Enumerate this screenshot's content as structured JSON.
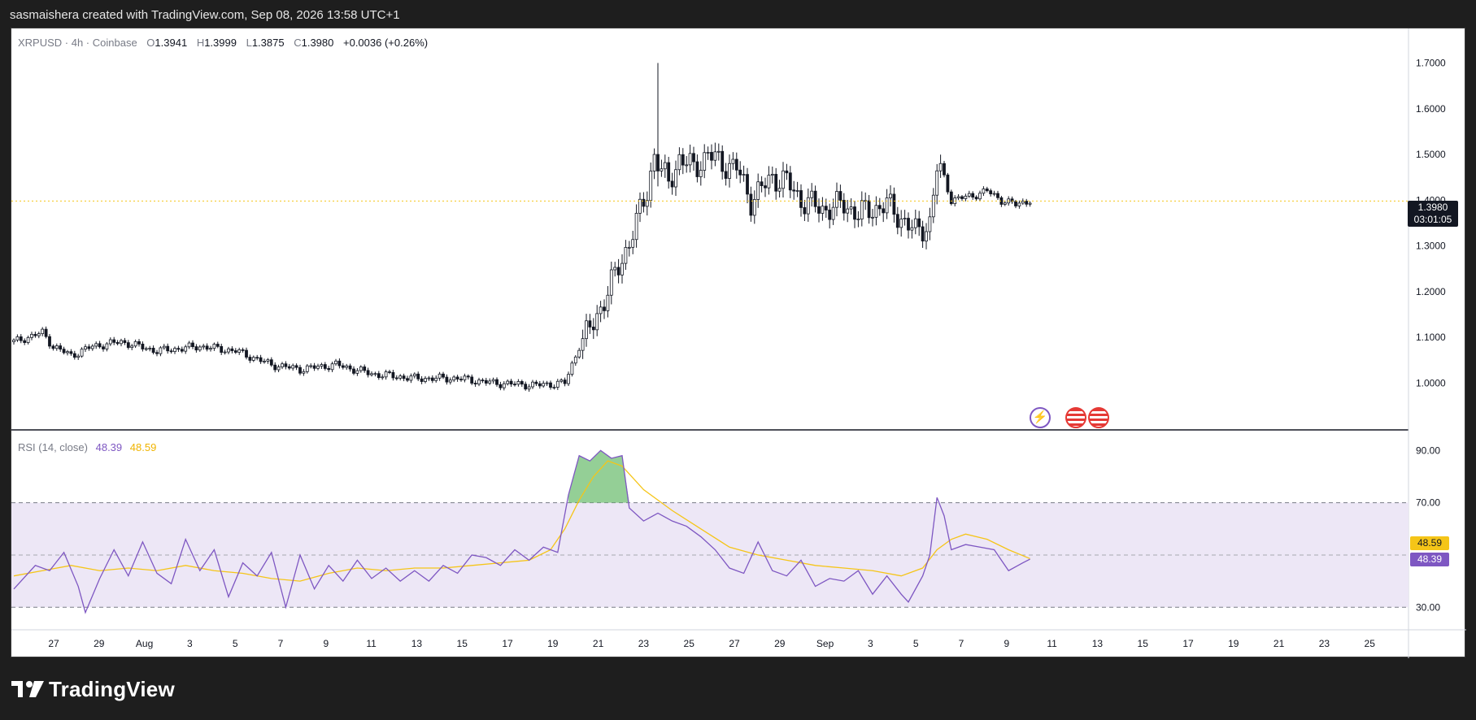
{
  "header": {
    "attribution": "sasmaishera created with TradingView.com, Sep 08, 2026 13:58 UTC+1"
  },
  "brand": {
    "name": "TradingView"
  },
  "legend": {
    "symbol": "XRPUSD · 4h · Coinbase",
    "o_label": "O",
    "o_value": "1.3941",
    "h_label": "H",
    "h_value": "1.3999",
    "l_label": "L",
    "l_value": "1.3875",
    "c_label": "C",
    "c_value": "1.3980",
    "change": "+0.0036 (+0.26%)"
  },
  "price_tag": {
    "price": "1.3980",
    "countdown": "03:01:05"
  },
  "rsi": {
    "label": "RSI (14, close)",
    "value": "48.39",
    "ma_value": "48.59"
  },
  "colors": {
    "rsi_line": "#7e57c2",
    "rsi_ma": "#f5c518",
    "rsi_band": "#ede7f6",
    "candle": "#131722",
    "price_line": "#f5c518",
    "overbought_fill": "#66bb6a"
  },
  "events": [
    {
      "icon": "lightning-icon"
    },
    {
      "icon": "us-flag-icon"
    },
    {
      "icon": "us-flag-icon"
    }
  ],
  "chart_data": [
    {
      "type": "candlestick",
      "title": "XRPUSD · 4h · Coinbase",
      "ylim": [
        0.94,
        1.74
      ],
      "y_ticks": [
        "1.7000",
        "1.6000",
        "1.5000",
        "1.4000",
        "1.3000",
        "1.2000",
        "1.1000",
        "1.0000"
      ],
      "x_ticks": [
        "27",
        "29",
        "Aug",
        "3",
        "5",
        "7",
        "9",
        "11",
        "13",
        "15",
        "17",
        "19",
        "21",
        "23",
        "25",
        "27",
        "29",
        "Sep",
        "3",
        "5",
        "7",
        "9",
        "11",
        "13",
        "15",
        "17",
        "19",
        "21",
        "23",
        "25"
      ],
      "last_price": 1.398,
      "close_trend": [
        [
          0,
          1.09
        ],
        [
          4,
          1.1
        ],
        [
          8,
          1.11
        ],
        [
          11,
          1.08
        ],
        [
          16,
          1.06
        ],
        [
          22,
          1.08
        ],
        [
          30,
          1.09
        ],
        [
          40,
          1.07
        ],
        [
          52,
          1.08
        ],
        [
          62,
          1.07
        ],
        [
          72,
          1.04
        ],
        [
          80,
          1.03
        ],
        [
          90,
          1.04
        ],
        [
          100,
          1.02
        ],
        [
          112,
          1.01
        ],
        [
          124,
          1.01
        ],
        [
          134,
          1.0
        ],
        [
          146,
          0.995
        ],
        [
          154,
          1.0
        ],
        [
          158,
          1.08
        ],
        [
          162,
          1.13
        ],
        [
          166,
          1.2
        ],
        [
          170,
          1.27
        ],
        [
          174,
          1.35
        ],
        [
          177,
          1.42
        ],
        [
          179,
          1.5
        ],
        [
          181,
          1.46
        ],
        [
          183,
          1.44
        ],
        [
          186,
          1.49
        ],
        [
          190,
          1.47
        ],
        [
          194,
          1.5
        ],
        [
          198,
          1.48
        ],
        [
          202,
          1.47
        ],
        [
          206,
          1.4
        ],
        [
          212,
          1.45
        ],
        [
          216,
          1.44
        ],
        [
          220,
          1.4
        ],
        [
          226,
          1.38
        ],
        [
          232,
          1.39
        ],
        [
          236,
          1.37
        ],
        [
          240,
          1.38
        ],
        [
          244,
          1.39
        ],
        [
          248,
          1.36
        ],
        [
          252,
          1.33
        ],
        [
          256,
          1.35
        ],
        [
          258,
          1.47
        ],
        [
          260,
          1.45
        ],
        [
          262,
          1.4
        ],
        [
          268,
          1.41
        ],
        [
          272,
          1.42
        ],
        [
          276,
          1.4
        ],
        [
          280,
          1.39
        ],
        [
          284,
          1.4
        ]
      ]
    },
    {
      "type": "line",
      "title": "RSI (14, close)",
      "ylim": [
        22,
        96
      ],
      "y_ticks": [
        "90.00",
        "70.00",
        "30.00"
      ],
      "bands": {
        "upper": 70,
        "middle": 50,
        "lower": 30
      },
      "series": [
        {
          "name": "RSI",
          "color": "#7e57c2",
          "values": [
            [
              0,
              37
            ],
            [
              6,
              46
            ],
            [
              10,
              44
            ],
            [
              14,
              51
            ],
            [
              18,
              38
            ],
            [
              20,
              28
            ],
            [
              24,
              41
            ],
            [
              28,
              52
            ],
            [
              32,
              42
            ],
            [
              36,
              55
            ],
            [
              40,
              43
            ],
            [
              44,
              39
            ],
            [
              48,
              56
            ],
            [
              52,
              44
            ],
            [
              56,
              52
            ],
            [
              60,
              34
            ],
            [
              64,
              47
            ],
            [
              68,
              42
            ],
            [
              72,
              51
            ],
            [
              76,
              30
            ],
            [
              80,
              50
            ],
            [
              84,
              37
            ],
            [
              88,
              46
            ],
            [
              92,
              40
            ],
            [
              96,
              48
            ],
            [
              100,
              41
            ],
            [
              104,
              45
            ],
            [
              108,
              40
            ],
            [
              112,
              44
            ],
            [
              116,
              40
            ],
            [
              120,
              46
            ],
            [
              124,
              43
            ],
            [
              128,
              50
            ],
            [
              132,
              49
            ],
            [
              136,
              46
            ],
            [
              140,
              52
            ],
            [
              144,
              48
            ],
            [
              148,
              53
            ],
            [
              152,
              51
            ],
            [
              155,
              73
            ],
            [
              158,
              88
            ],
            [
              161,
              86
            ],
            [
              164,
              90
            ],
            [
              167,
              87
            ],
            [
              170,
              88
            ],
            [
              172,
              68
            ],
            [
              176,
              63
            ],
            [
              180,
              66
            ],
            [
              184,
              63
            ],
            [
              188,
              61
            ],
            [
              192,
              57
            ],
            [
              196,
              52
            ],
            [
              200,
              45
            ],
            [
              204,
              43
            ],
            [
              208,
              55
            ],
            [
              212,
              44
            ],
            [
              216,
              42
            ],
            [
              220,
              48
            ],
            [
              224,
              38
            ],
            [
              228,
              41
            ],
            [
              232,
              40
            ],
            [
              236,
              44
            ],
            [
              240,
              35
            ],
            [
              244,
              42
            ],
            [
              248,
              35
            ],
            [
              250,
              32
            ],
            [
              254,
              42
            ],
            [
              256,
              50
            ],
            [
              258,
              72
            ],
            [
              260,
              65
            ],
            [
              262,
              52
            ],
            [
              266,
              54
            ],
            [
              270,
              53
            ],
            [
              274,
              52
            ],
            [
              278,
              44
            ],
            [
              282,
              47
            ],
            [
              284,
              48.4
            ]
          ]
        },
        {
          "name": "RSI-based MA",
          "color": "#f5c518",
          "values": [
            [
              0,
              42
            ],
            [
              8,
              44
            ],
            [
              16,
              46
            ],
            [
              24,
              44
            ],
            [
              32,
              45
            ],
            [
              40,
              44
            ],
            [
              48,
              46
            ],
            [
              56,
              44
            ],
            [
              64,
              43
            ],
            [
              72,
              41
            ],
            [
              80,
              40
            ],
            [
              88,
              43
            ],
            [
              96,
              45
            ],
            [
              104,
              44
            ],
            [
              112,
              45
            ],
            [
              120,
              45
            ],
            [
              128,
              46
            ],
            [
              136,
              47
            ],
            [
              144,
              48
            ],
            [
              150,
              52
            ],
            [
              154,
              60
            ],
            [
              158,
              71
            ],
            [
              162,
              80
            ],
            [
              166,
              86
            ],
            [
              170,
              84
            ],
            [
              176,
              75
            ],
            [
              184,
              67
            ],
            [
              192,
              60
            ],
            [
              200,
              53
            ],
            [
              208,
              50
            ],
            [
              216,
              48
            ],
            [
              224,
              46
            ],
            [
              232,
              45
            ],
            [
              240,
              44
            ],
            [
              248,
              42
            ],
            [
              254,
              45
            ],
            [
              258,
              52
            ],
            [
              262,
              56
            ],
            [
              266,
              58
            ],
            [
              272,
              56
            ],
            [
              278,
              52
            ],
            [
              284,
              48.6
            ]
          ]
        }
      ]
    }
  ]
}
